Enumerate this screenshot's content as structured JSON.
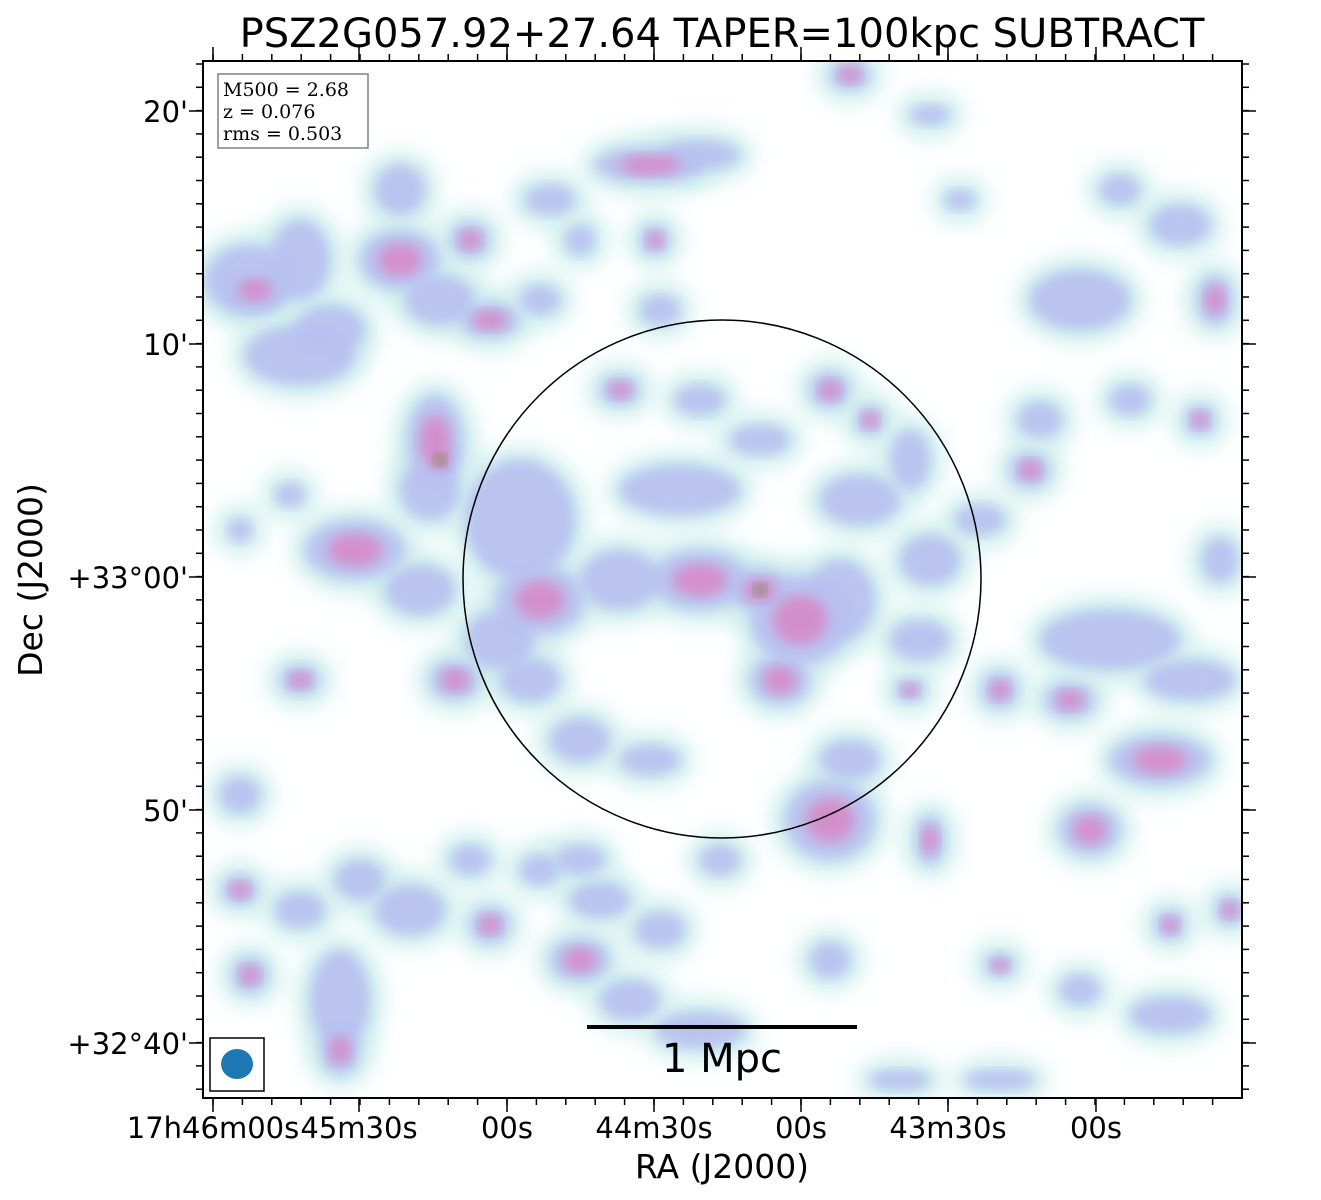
{
  "title": "PSZ2G057.92+27.64 TAPER=100kpc SUBTRACT",
  "info_box": {
    "lines": [
      "M500 = 2.68",
      "z = 0.076",
      "rms = 0.503"
    ]
  },
  "axes": {
    "xlabel": "RA (J2000)",
    "ylabel": "Dec (J2000)",
    "x_tick_labels": [
      "17h46m00s",
      "45m30s",
      "00s",
      "44m30s",
      "00s",
      "43m30s",
      "00s"
    ],
    "y_tick_labels": [
      "20'",
      "10'",
      "+33°00'",
      "50'",
      "+32°40'"
    ]
  },
  "scale_bar": {
    "label": "1 Mpc"
  },
  "colors": {
    "emission_low": "#cfeeee",
    "emission_mid": "#b8c0f0",
    "emission_high": "#d68ac8",
    "emission_peak": "#6e8a3a",
    "beam": "#1f77b4"
  },
  "icons": {
    "beam": "filled-ellipse"
  }
}
